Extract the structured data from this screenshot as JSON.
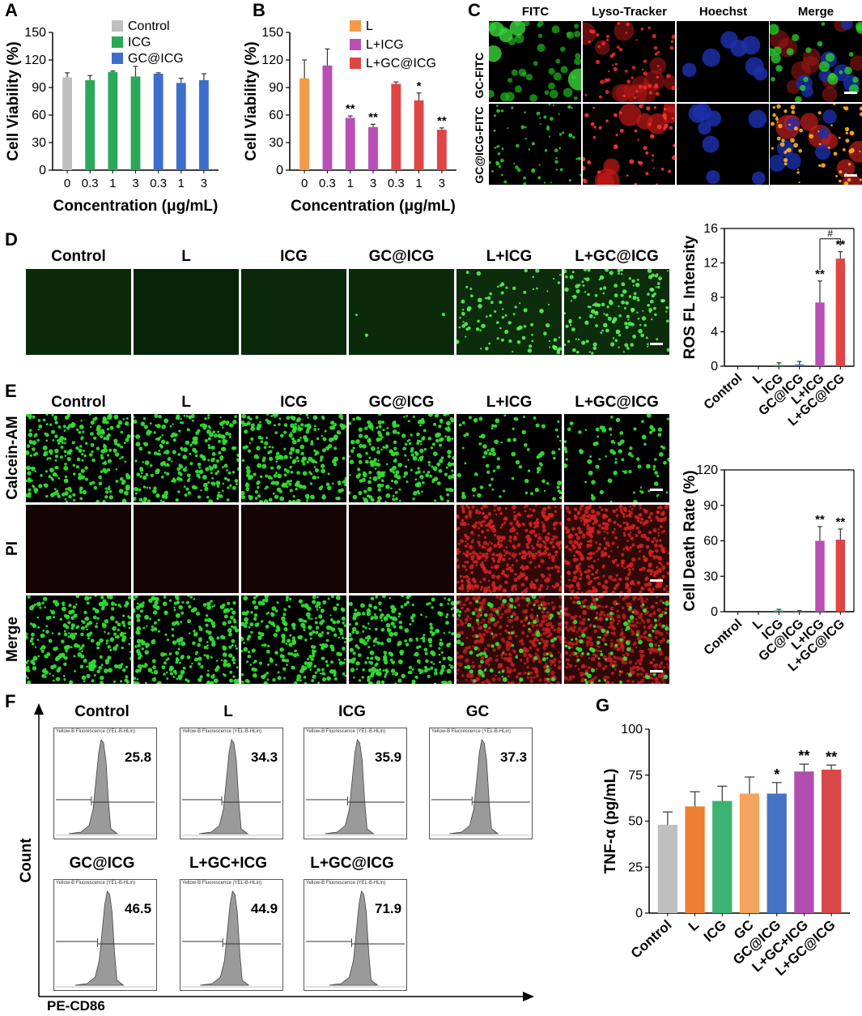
{
  "panel_labels": {
    "A": "A",
    "B": "B",
    "C": "C",
    "D": "D",
    "E": "E",
    "F": "F",
    "G": "G"
  },
  "colors": {
    "gray": "#bfbfbf",
    "green": "#2aa95a",
    "blue": "#3d6ecb",
    "orange": "#f39a4a",
    "purple": "#b84fb5",
    "red": "#e04545",
    "gOrange": "#ee7e32",
    "gGreen": "#3cb371",
    "gPeach": "#f4a460",
    "gBlue": "#4472c4",
    "gPurple": "#b04fb0",
    "gRed": "#d94848"
  },
  "panel_c": {
    "columns": [
      "FITC",
      "Lyso-Tracker",
      "Hoechst",
      "Merge"
    ],
    "rows": [
      "GC-FITC",
      "GC@ICG-FITC"
    ]
  },
  "panel_d": {
    "columns": [
      "Control",
      "L",
      "ICG",
      "GC@ICG",
      "L+ICG",
      "L+GC@ICG"
    ]
  },
  "panel_e": {
    "columns": [
      "Control",
      "L",
      "ICG",
      "GC@ICG",
      "L+ICG",
      "L+GC@ICG"
    ],
    "rows": [
      "Calcein-AM",
      "PI",
      "Merge"
    ]
  },
  "panel_f": {
    "axis_y": "Count",
    "axis_x": "PE-CD86",
    "plots": [
      {
        "name": "Control",
        "value": "25.8"
      },
      {
        "name": "L",
        "value": "34.3"
      },
      {
        "name": "ICG",
        "value": "35.9"
      },
      {
        "name": "GC",
        "value": "37.3"
      },
      {
        "name": "GC@ICG",
        "value": "46.5"
      },
      {
        "name": "L+GC+ICG",
        "value": "44.9"
      },
      {
        "name": "L+GC@ICG",
        "value": "71.9"
      }
    ],
    "tiny_header": "Yellow-B Fluorescence (YEL-B-HLin)"
  },
  "chart_data": [
    {
      "id": "A",
      "type": "bar",
      "ylabel": "Cell Viability (%)",
      "xlabel": "Concentration (μg/mL)",
      "ylim": [
        0,
        150
      ],
      "yticks": [
        0,
        30,
        60,
        90,
        120,
        150
      ],
      "categories": [
        "0",
        "0.3",
        "1",
        "3",
        "0.3",
        "1",
        "3"
      ],
      "values": [
        101,
        98,
        107,
        102,
        105,
        95,
        98
      ],
      "errors": [
        5,
        5,
        1,
        11,
        1,
        5,
        7
      ],
      "bar_groups": [
        "Control",
        "ICG",
        "ICG",
        "ICG",
        "GC@ICG",
        "GC@ICG",
        "GC@ICG"
      ],
      "legend": [
        {
          "name": "Control",
          "color": "#bfbfbf"
        },
        {
          "name": "ICG",
          "color": "#2aa95a"
        },
        {
          "name": "GC@ICG",
          "color": "#3d6ecb"
        }
      ],
      "bar_colors": [
        "#bfbfbf",
        "#2aa95a",
        "#2aa95a",
        "#2aa95a",
        "#3d6ecb",
        "#3d6ecb",
        "#3d6ecb"
      ],
      "annotations": [
        "",
        "",
        "",
        "",
        "",
        "",
        ""
      ]
    },
    {
      "id": "B",
      "type": "bar",
      "ylabel": "Cell Viability (%)",
      "xlabel": "Concentration (μg/mL)",
      "ylim": [
        0,
        150
      ],
      "yticks": [
        0,
        30,
        60,
        90,
        120,
        150
      ],
      "categories": [
        "0",
        "0.3",
        "1",
        "3",
        "0.3",
        "1",
        "3"
      ],
      "values": [
        100,
        114,
        57,
        47,
        94,
        76,
        44
      ],
      "errors": [
        20,
        18,
        2,
        3,
        2,
        8,
        2
      ],
      "legend": [
        {
          "name": "L",
          "color": "#f39a4a"
        },
        {
          "name": "L+ICG",
          "color": "#b84fb5"
        },
        {
          "name": "L+GC@ICG",
          "color": "#e04545"
        }
      ],
      "bar_colors": [
        "#f39a4a",
        "#b84fb5",
        "#b84fb5",
        "#b84fb5",
        "#e04545",
        "#e04545",
        "#e04545"
      ],
      "annotations": [
        "",
        "",
        "**",
        "**",
        "",
        "*",
        "**"
      ]
    },
    {
      "id": "D-right",
      "type": "bar",
      "ylabel": "ROS FL Intensity",
      "ylim": [
        0,
        16
      ],
      "yticks": [
        0,
        4,
        8,
        12,
        16
      ],
      "categories": [
        "Control",
        "L",
        "ICG",
        "GC@ICG",
        "L+ICG",
        "L+GC@ICG"
      ],
      "values": [
        0,
        0,
        0.15,
        0.2,
        7.4,
        12.5
      ],
      "errors": [
        0,
        0,
        0.25,
        0.35,
        2.5,
        0.8
      ],
      "bar_colors": [
        "#bfbfbf",
        "#f39a4a",
        "#2aa95a",
        "#3d6ecb",
        "#b84fb5",
        "#e04545"
      ],
      "annotations": [
        "",
        "",
        "",
        "",
        "**",
        "**"
      ],
      "bracket": "#"
    },
    {
      "id": "E-right",
      "type": "bar",
      "ylabel": "Cell Death Rate (%)",
      "ylim": [
        0,
        120
      ],
      "yticks": [
        0,
        30,
        60,
        90,
        120
      ],
      "categories": [
        "Control",
        "L",
        "ICG",
        "GC@ICG",
        "L+ICG",
        "L+GC@ICG"
      ],
      "values": [
        0,
        0,
        1,
        0.5,
        60,
        61
      ],
      "errors": [
        0,
        0,
        1,
        0.5,
        12,
        9
      ],
      "bar_colors": [
        "#bfbfbf",
        "#f39a4a",
        "#2aa95a",
        "#3d6ecb",
        "#b84fb5",
        "#e04545"
      ],
      "annotations": [
        "",
        "",
        "",
        "",
        "**",
        "**"
      ]
    },
    {
      "id": "G",
      "type": "bar",
      "ylabel": "TNF-α (pg/mL)",
      "ylim": [
        0,
        100
      ],
      "yticks": [
        0,
        25,
        50,
        75,
        100
      ],
      "categories": [
        "Control",
        "L",
        "ICG",
        "GC",
        "GC@ICG",
        "L+GC+ICG",
        "L+GC@ICG"
      ],
      "values": [
        48,
        58,
        61,
        65,
        65,
        77,
        78
      ],
      "errors": [
        7,
        8,
        8,
        9,
        6,
        4,
        2.5
      ],
      "bar_colors": [
        "#bfbfbf",
        "#ee7e32",
        "#3cb371",
        "#f4a460",
        "#4472c4",
        "#b04fb0",
        "#d94848"
      ],
      "annotations": [
        "",
        "",
        "",
        "",
        "*",
        "**",
        "**"
      ]
    }
  ]
}
